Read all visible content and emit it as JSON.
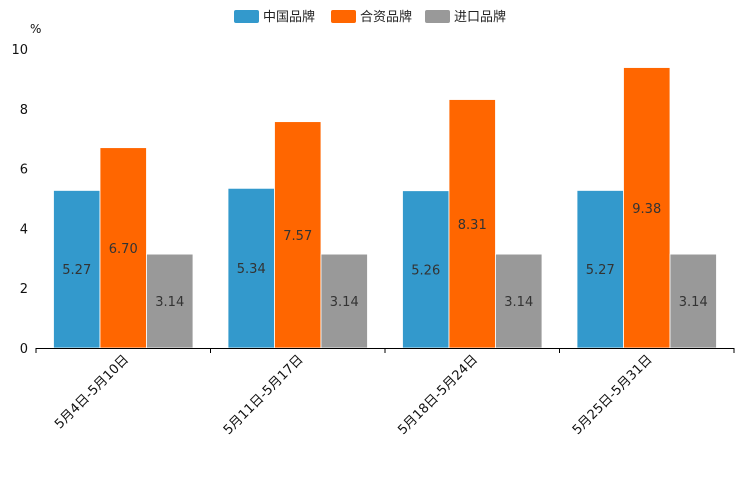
{
  "chart_data": {
    "type": "bar",
    "title": "",
    "xlabel": "",
    "ylabel": "",
    "y_unit": "%",
    "ylim": [
      0,
      10
    ],
    "yticks": [
      "0",
      "2",
      "4",
      "6",
      "8",
      "10"
    ],
    "grid": false,
    "legend_position": "top-center",
    "categories": [
      "5月4日-5月10日",
      "5月11日-5月17日",
      "5月18日-5月24日",
      "5月25日-5月31日"
    ],
    "series": [
      {
        "name": "中国品牌",
        "color": "#3399cc",
        "values": [
          5.27,
          5.34,
          5.26,
          5.27
        ],
        "labels": [
          "5.27",
          "5.34",
          "5.26",
          "5.27"
        ]
      },
      {
        "name": "合资品牌",
        "color": "#ff6600",
        "values": [
          6.7,
          7.57,
          8.31,
          9.38
        ],
        "labels": [
          "6.70",
          "7.57",
          "8.31",
          "9.38"
        ]
      },
      {
        "name": "进口品牌",
        "color": "#999999",
        "values": [
          3.14,
          3.14,
          3.14,
          3.14
        ],
        "labels": [
          "3.14",
          "3.14",
          "3.14",
          "3.14"
        ]
      }
    ]
  }
}
